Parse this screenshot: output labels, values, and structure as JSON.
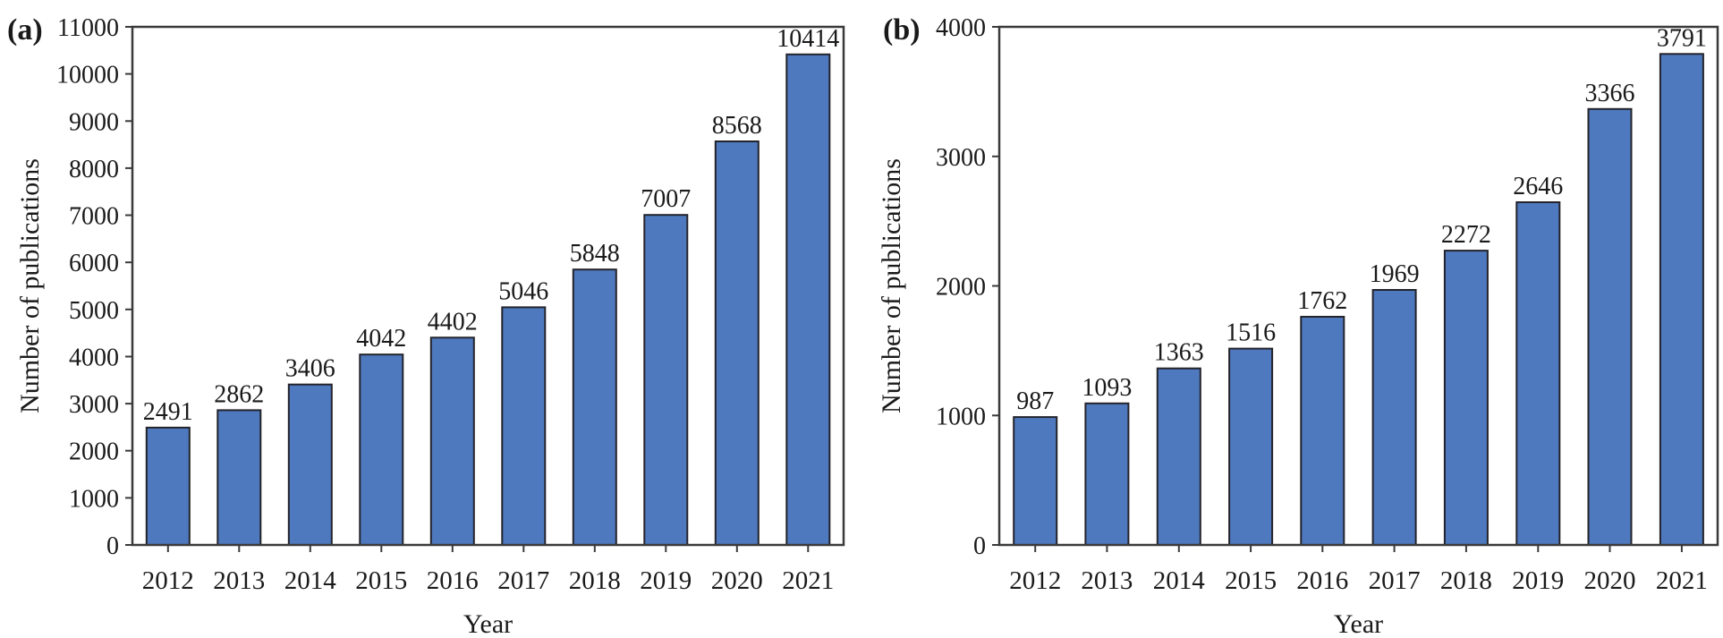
{
  "figure": {
    "background": "#ffffff",
    "text_color": "#1a1a1a",
    "axis_color": "#3a3a3a",
    "bar_fill": "#4e79be",
    "bar_stroke": "#23232b"
  },
  "chart_data": [
    {
      "type": "bar",
      "panel_label": "(a)",
      "title": "",
      "xlabel": "Year",
      "ylabel": "Number of publications",
      "categories": [
        "2012",
        "2013",
        "2014",
        "2015",
        "2016",
        "2017",
        "2018",
        "2019",
        "2020",
        "2021"
      ],
      "values": [
        2491,
        2862,
        3406,
        4042,
        4402,
        5046,
        5848,
        7007,
        8568,
        10414
      ],
      "ylim": [
        0,
        11000
      ],
      "ytick_step": 1000,
      "grid": false,
      "legend": "none",
      "bar_value_labels": true
    },
    {
      "type": "bar",
      "panel_label": "(b)",
      "title": "",
      "xlabel": "Year",
      "ylabel": "Number of publications",
      "categories": [
        "2012",
        "2013",
        "2014",
        "2015",
        "2016",
        "2017",
        "2018",
        "2019",
        "2020",
        "2021"
      ],
      "values": [
        987,
        1093,
        1363,
        1516,
        1762,
        1969,
        2272,
        2646,
        3366,
        3791
      ],
      "ylim": [
        0,
        4000
      ],
      "ytick_step": 1000,
      "grid": false,
      "legend": "none",
      "bar_value_labels": true
    }
  ]
}
